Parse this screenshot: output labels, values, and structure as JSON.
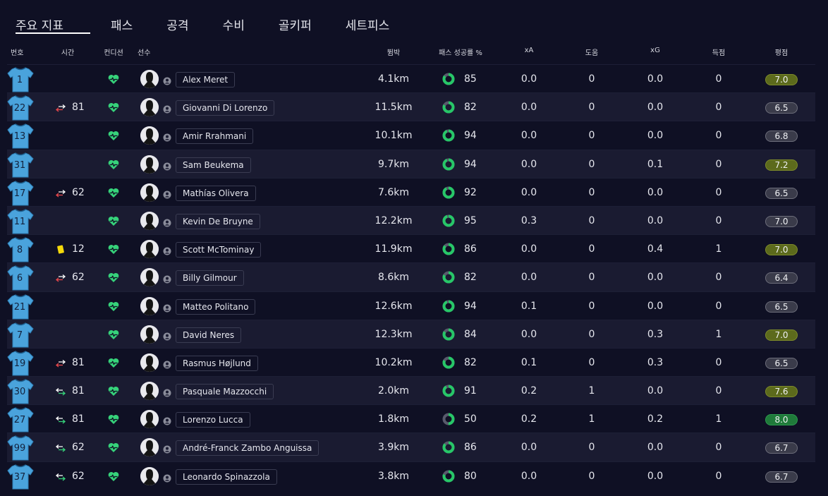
{
  "tabs": [
    "주요 지표",
    "패스",
    "공격",
    "수비",
    "골키퍼",
    "세트피스"
  ],
  "headers": {
    "number": "번호",
    "time": "시간",
    "condition": "컨디션",
    "player": "선수",
    "distance": "뜀박",
    "pass_pct": "패스 성공률 %",
    "xa": "xA",
    "assists": "도움",
    "xg": "xG",
    "goals": "득점",
    "rating": "평점"
  },
  "colors": {
    "background": "#0f1024",
    "row_alt": "#1a1b31",
    "shirt": "#4aa3dc",
    "condition": "#36d27a",
    "donut_fill": "#27c768",
    "donut_track": "#585a6c",
    "rating_mid": "#5c6a1c",
    "rating_high": "#1f7a3a"
  },
  "players": [
    {
      "number": "1",
      "event": "",
      "minute": "",
      "name": "Alex Meret",
      "distance": "4.1km",
      "pass_pct": 85,
      "xa": "0.0",
      "assists": "0",
      "xg": "0.0",
      "goals": "0",
      "rating": "7.0",
      "rating_tier": "mid"
    },
    {
      "number": "22",
      "event": "sub-off",
      "minute": "81",
      "name": "Giovanni Di Lorenzo",
      "distance": "11.5km",
      "pass_pct": 82,
      "xa": "0.0",
      "assists": "0",
      "xg": "0.0",
      "goals": "0",
      "rating": "6.5",
      "rating_tier": "low"
    },
    {
      "number": "13",
      "event": "",
      "minute": "",
      "name": "Amir Rrahmani",
      "distance": "10.1km",
      "pass_pct": 94,
      "xa": "0.0",
      "assists": "0",
      "xg": "0.0",
      "goals": "0",
      "rating": "6.8",
      "rating_tier": "low"
    },
    {
      "number": "31",
      "event": "",
      "minute": "",
      "name": "Sam Beukema",
      "distance": "9.7km",
      "pass_pct": 94,
      "xa": "0.0",
      "assists": "0",
      "xg": "0.1",
      "goals": "0",
      "rating": "7.2",
      "rating_tier": "mid"
    },
    {
      "number": "17",
      "event": "sub-off",
      "minute": "62",
      "name": "Mathías Olivera",
      "distance": "7.6km",
      "pass_pct": 92,
      "xa": "0.0",
      "assists": "0",
      "xg": "0.0",
      "goals": "0",
      "rating": "6.5",
      "rating_tier": "low"
    },
    {
      "number": "11",
      "event": "",
      "minute": "",
      "name": "Kevin De Bruyne",
      "distance": "12.2km",
      "pass_pct": 95,
      "xa": "0.3",
      "assists": "0",
      "xg": "0.0",
      "goals": "0",
      "rating": "7.0",
      "rating_tier": "low"
    },
    {
      "number": "8",
      "event": "yellow",
      "minute": "12",
      "name": "Scott McTominay",
      "distance": "11.9km",
      "pass_pct": 86,
      "xa": "0.0",
      "assists": "0",
      "xg": "0.4",
      "goals": "1",
      "rating": "7.0",
      "rating_tier": "mid"
    },
    {
      "number": "6",
      "event": "sub-off",
      "minute": "62",
      "name": "Billy Gilmour",
      "distance": "8.6km",
      "pass_pct": 82,
      "xa": "0.0",
      "assists": "0",
      "xg": "0.0",
      "goals": "0",
      "rating": "6.4",
      "rating_tier": "low"
    },
    {
      "number": "21",
      "event": "",
      "minute": "",
      "name": "Matteo Politano",
      "distance": "12.6km",
      "pass_pct": 94,
      "xa": "0.1",
      "assists": "0",
      "xg": "0.0",
      "goals": "0",
      "rating": "6.5",
      "rating_tier": "low"
    },
    {
      "number": "7",
      "event": "",
      "minute": "",
      "name": "David Neres",
      "distance": "12.3km",
      "pass_pct": 84,
      "xa": "0.0",
      "assists": "0",
      "xg": "0.3",
      "goals": "1",
      "rating": "7.0",
      "rating_tier": "mid"
    },
    {
      "number": "19",
      "event": "sub-off",
      "minute": "81",
      "name": "Rasmus Højlund",
      "distance": "10.2km",
      "pass_pct": 82,
      "xa": "0.1",
      "assists": "0",
      "xg": "0.3",
      "goals": "0",
      "rating": "6.5",
      "rating_tier": "low"
    },
    {
      "number": "30",
      "event": "sub-on",
      "minute": "81",
      "name": "Pasquale Mazzocchi",
      "distance": "2.0km",
      "pass_pct": 91,
      "xa": "0.2",
      "assists": "1",
      "xg": "0.0",
      "goals": "0",
      "rating": "7.6",
      "rating_tier": "mid"
    },
    {
      "number": "27",
      "event": "sub-on",
      "minute": "81",
      "name": "Lorenzo Lucca",
      "distance": "1.8km",
      "pass_pct": 50,
      "xa": "0.2",
      "assists": "1",
      "xg": "0.2",
      "goals": "1",
      "rating": "8.0",
      "rating_tier": "high"
    },
    {
      "number": "99",
      "event": "sub-on",
      "minute": "62",
      "name": "André-Franck Zambo Anguissa",
      "distance": "3.9km",
      "pass_pct": 86,
      "xa": "0.0",
      "assists": "0",
      "xg": "0.0",
      "goals": "0",
      "rating": "6.7",
      "rating_tier": "low"
    },
    {
      "number": "37",
      "event": "sub-on",
      "minute": "62",
      "name": "Leonardo Spinazzola",
      "distance": "3.8km",
      "pass_pct": 80,
      "xa": "0.0",
      "assists": "0",
      "xg": "0.0",
      "goals": "0",
      "rating": "6.7",
      "rating_tier": "low"
    }
  ]
}
